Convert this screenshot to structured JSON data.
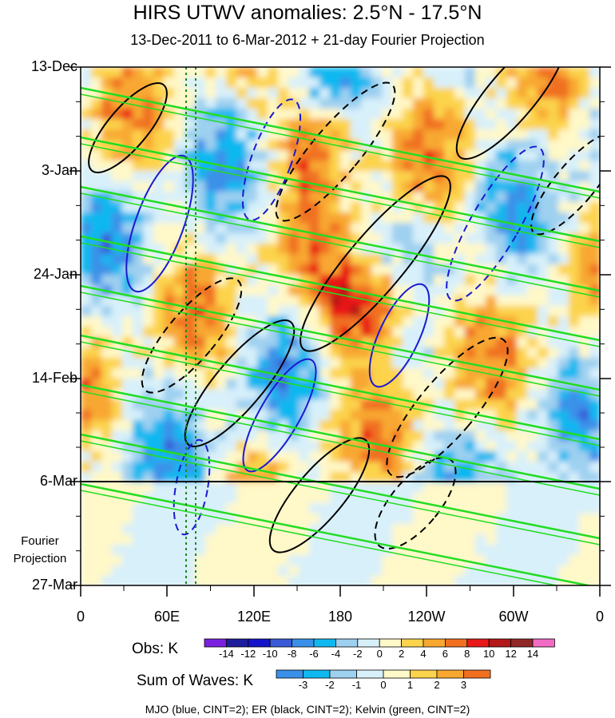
{
  "chart_data": {
    "type": "heatmap",
    "title": "HIRS UTWV anomalies: 2.5°N - 17.5°N",
    "subtitle": "13-Dec-2011 to 6-Mar-2012 + 21-day Fourier Projection",
    "y_ticks": [
      "13-Dec",
      "3-Jan",
      "24-Jan",
      "14-Feb",
      "6-Mar",
      "27-Mar"
    ],
    "x_ticks": [
      "0",
      "60E",
      "120E",
      "180",
      "120W",
      "60W",
      "0"
    ],
    "projection_label": [
      "Fourier",
      "Projection"
    ],
    "colorbars": [
      {
        "name": "Obs: K",
        "ticks": [
          "-14",
          "-12",
          "-10",
          "-8",
          "-6",
          "-4",
          "-2",
          "0",
          "2",
          "4",
          "6",
          "8",
          "10",
          "12",
          "14"
        ],
        "colors": [
          "#7a1fe0",
          "#1c1c9c",
          "#1414c8",
          "#3a5ad8",
          "#3a90e8",
          "#10b8f0",
          "#9ed0f0",
          "#d8f0fa",
          "#fff8c8",
          "#fcd34c",
          "#f8a830",
          "#f07020",
          "#e81818",
          "#b41818",
          "#902828",
          "#f26cc4"
        ]
      },
      {
        "name": "Sum of Waves: K",
        "ticks": [
          "-3",
          "-2",
          "-1",
          "0",
          "1",
          "2",
          "3"
        ],
        "colors": [
          "#3a90e8",
          "#10b8f0",
          "#9ed0f0",
          "#d8f0fa",
          "#fff8c8",
          "#fcd34c",
          "#f8a830",
          "#f07020"
        ]
      }
    ],
    "footnote": "MJO (blue, CINT=2); ER (black, CINT=2); Kelvin (green, CINT=2)"
  }
}
